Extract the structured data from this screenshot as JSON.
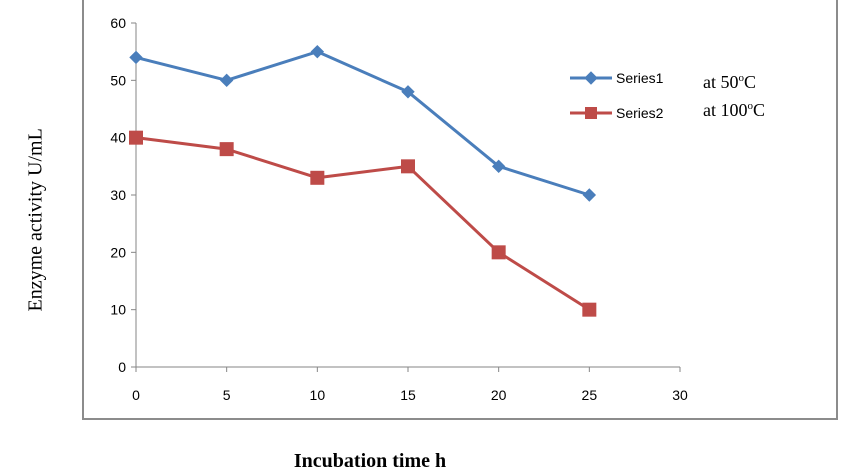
{
  "chart_data": {
    "type": "line",
    "title": "",
    "xlabel": "Incubation time h",
    "ylabel": "Enzyme activity U/mL",
    "x": [
      0,
      5,
      10,
      15,
      20,
      25
    ],
    "xlim": [
      0,
      30
    ],
    "ylim": [
      0,
      60
    ],
    "xticks": [
      "0",
      "5",
      "10",
      "15",
      "20",
      "25",
      "30"
    ],
    "yticks": [
      "0",
      "10",
      "20",
      "30",
      "40",
      "50",
      "60"
    ],
    "grid": false,
    "legend_position": "top-right",
    "series": [
      {
        "name": "Series1",
        "annotation": "at 50°C",
        "marker": "diamond",
        "color": "#4a7ebb",
        "values": [
          54,
          50,
          55,
          48,
          35,
          30
        ]
      },
      {
        "name": "Series2",
        "annotation": "at 100°C",
        "marker": "square",
        "color": "#be4b48",
        "values": [
          40,
          38,
          33,
          35,
          20,
          10
        ]
      }
    ]
  }
}
